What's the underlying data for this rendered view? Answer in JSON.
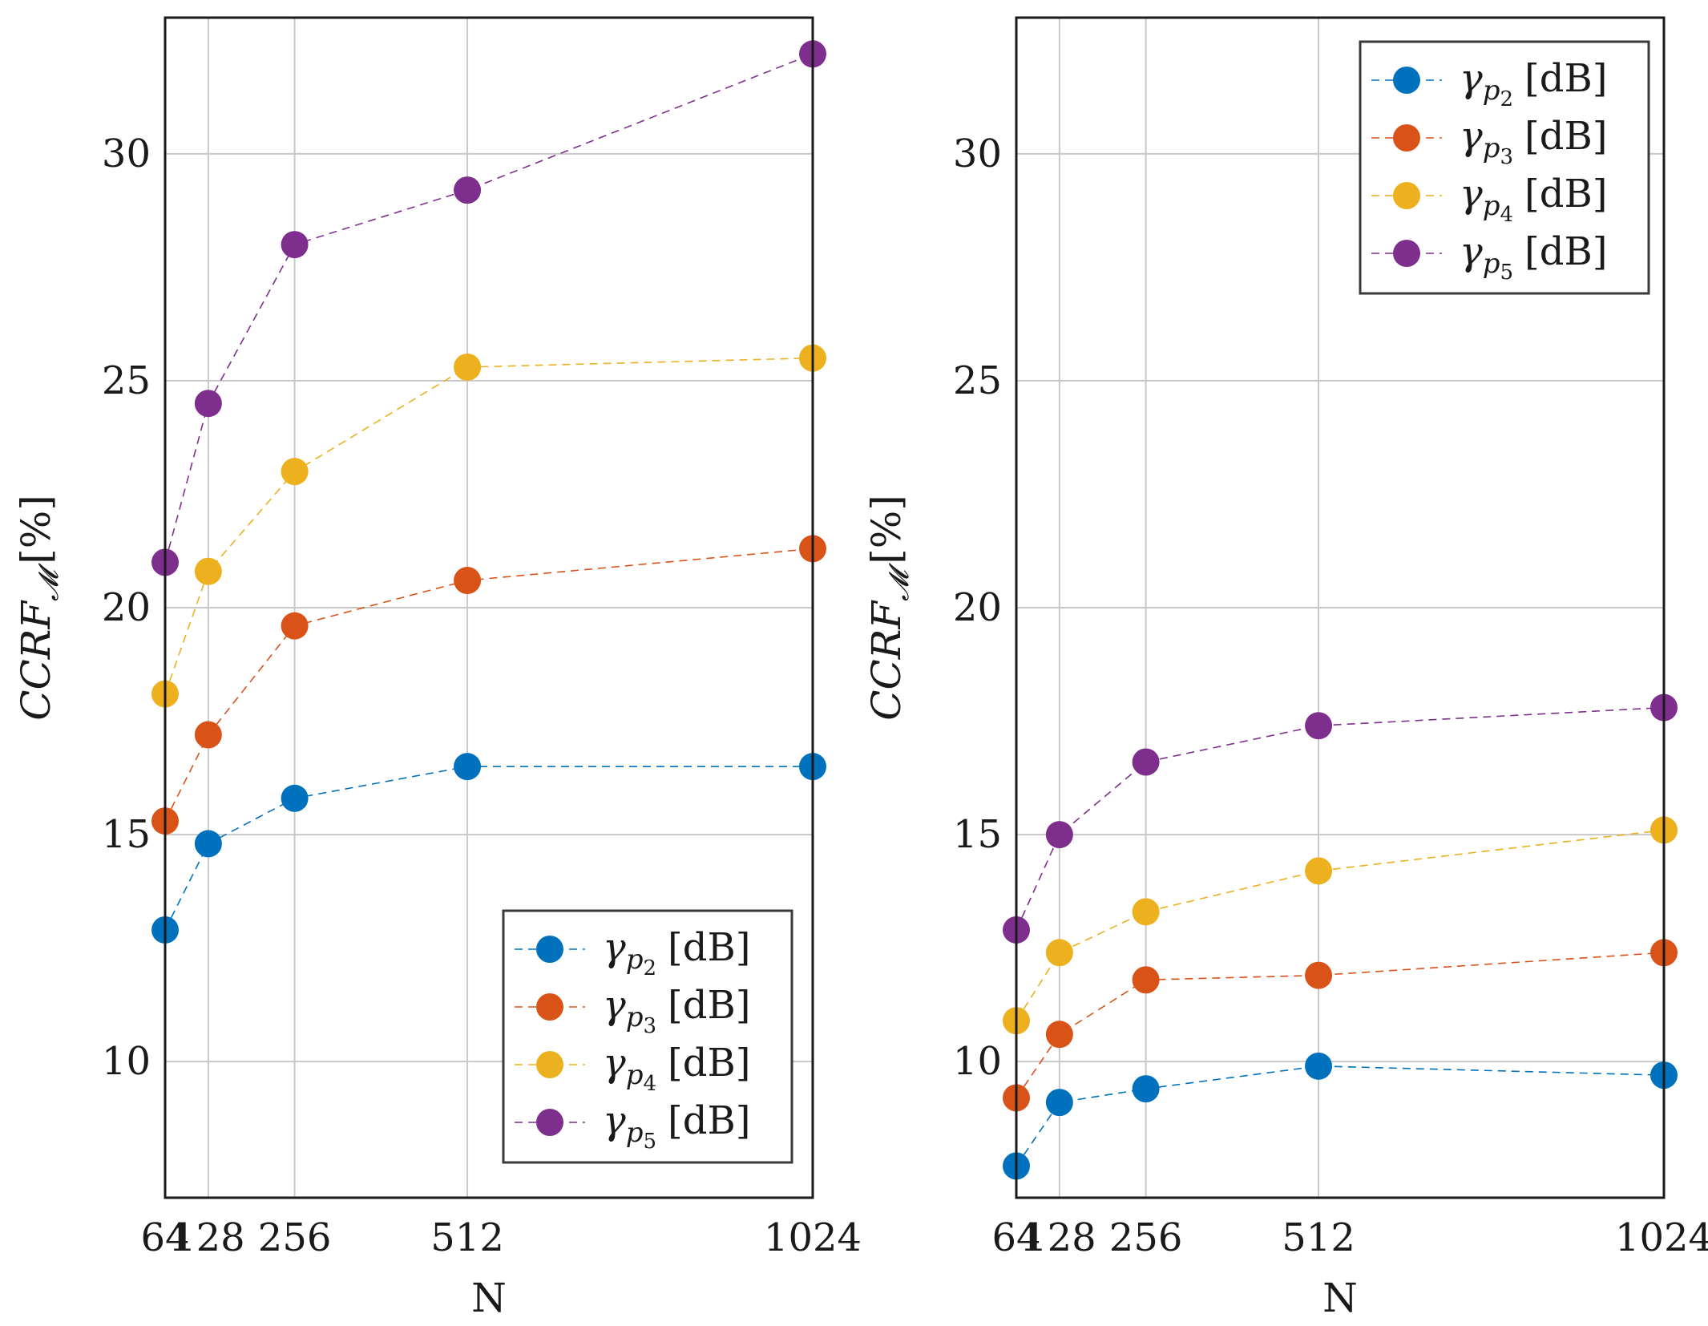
{
  "chart_data": [
    {
      "type": "line",
      "panel": "left",
      "title": "",
      "xlabel": "N",
      "ylabel": "CCRF",
      "ylabel_sub": "𝓜",
      "ylabel_unit": "[%]",
      "x": [
        64,
        128,
        256,
        512,
        1024
      ],
      "x_ticks": [
        "64",
        "128",
        "256",
        "512",
        "1024"
      ],
      "y_ticks": [
        "10",
        "15",
        "20",
        "25",
        "30"
      ],
      "xlim": [
        64,
        1024
      ],
      "ylim": [
        7.0,
        33.0
      ],
      "grid": true,
      "legend_position": "bottom-right",
      "series": [
        {
          "name": "γp2 [dB]",
          "symbol": "γ",
          "sub": "p",
          "subsub": "2",
          "unit": "[dB]",
          "color": "#0072BD",
          "values": [
            12.9,
            14.8,
            15.8,
            16.5,
            16.5
          ]
        },
        {
          "name": "γp3 [dB]",
          "symbol": "γ",
          "sub": "p",
          "subsub": "3",
          "unit": "[dB]",
          "color": "#D95319",
          "values": [
            15.3,
            17.2,
            19.6,
            20.6,
            21.3
          ]
        },
        {
          "name": "γp4 [dB]",
          "symbol": "γ",
          "sub": "p",
          "subsub": "4",
          "unit": "[dB]",
          "color": "#EDB120",
          "values": [
            18.1,
            20.8,
            23.0,
            25.3,
            25.5
          ]
        },
        {
          "name": "γp5 [dB]",
          "symbol": "γ",
          "sub": "p",
          "subsub": "5",
          "unit": "[dB]",
          "color": "#7E2F8E",
          "values": [
            21.0,
            24.5,
            28.0,
            29.2,
            32.2
          ]
        }
      ]
    },
    {
      "type": "line",
      "panel": "right",
      "title": "",
      "xlabel": "N",
      "ylabel": "CCRF",
      "ylabel_sub": "𝓜",
      "ylabel_unit": "[%]",
      "x": [
        64,
        128,
        256,
        512,
        1024
      ],
      "x_ticks": [
        "64",
        "128",
        "256",
        "512",
        "1024"
      ],
      "y_ticks": [
        "10",
        "15",
        "20",
        "25",
        "30"
      ],
      "xlim": [
        64,
        1024
      ],
      "ylim": [
        7.0,
        33.0
      ],
      "grid": true,
      "legend_position": "top-right",
      "series": [
        {
          "name": "γp2 [dB]",
          "symbol": "γ",
          "sub": "p",
          "subsub": "2",
          "unit": "[dB]",
          "color": "#0072BD",
          "values": [
            7.7,
            9.1,
            9.4,
            9.9,
            9.7
          ]
        },
        {
          "name": "γp3 [dB]",
          "symbol": "γ",
          "sub": "p",
          "subsub": "3",
          "unit": "[dB]",
          "color": "#D95319",
          "values": [
            9.2,
            10.6,
            11.8,
            11.9,
            12.4
          ]
        },
        {
          "name": "γp4 [dB]",
          "symbol": "γ",
          "sub": "p",
          "subsub": "4",
          "unit": "[dB]",
          "color": "#EDB120",
          "values": [
            10.9,
            12.4,
            13.3,
            14.2,
            15.1
          ]
        },
        {
          "name": "γp5 [dB]",
          "symbol": "γ",
          "sub": "p",
          "subsub": "5",
          "unit": "[dB]",
          "color": "#7E2F8E",
          "values": [
            12.9,
            15.0,
            16.6,
            17.4,
            17.8
          ]
        }
      ]
    }
  ]
}
